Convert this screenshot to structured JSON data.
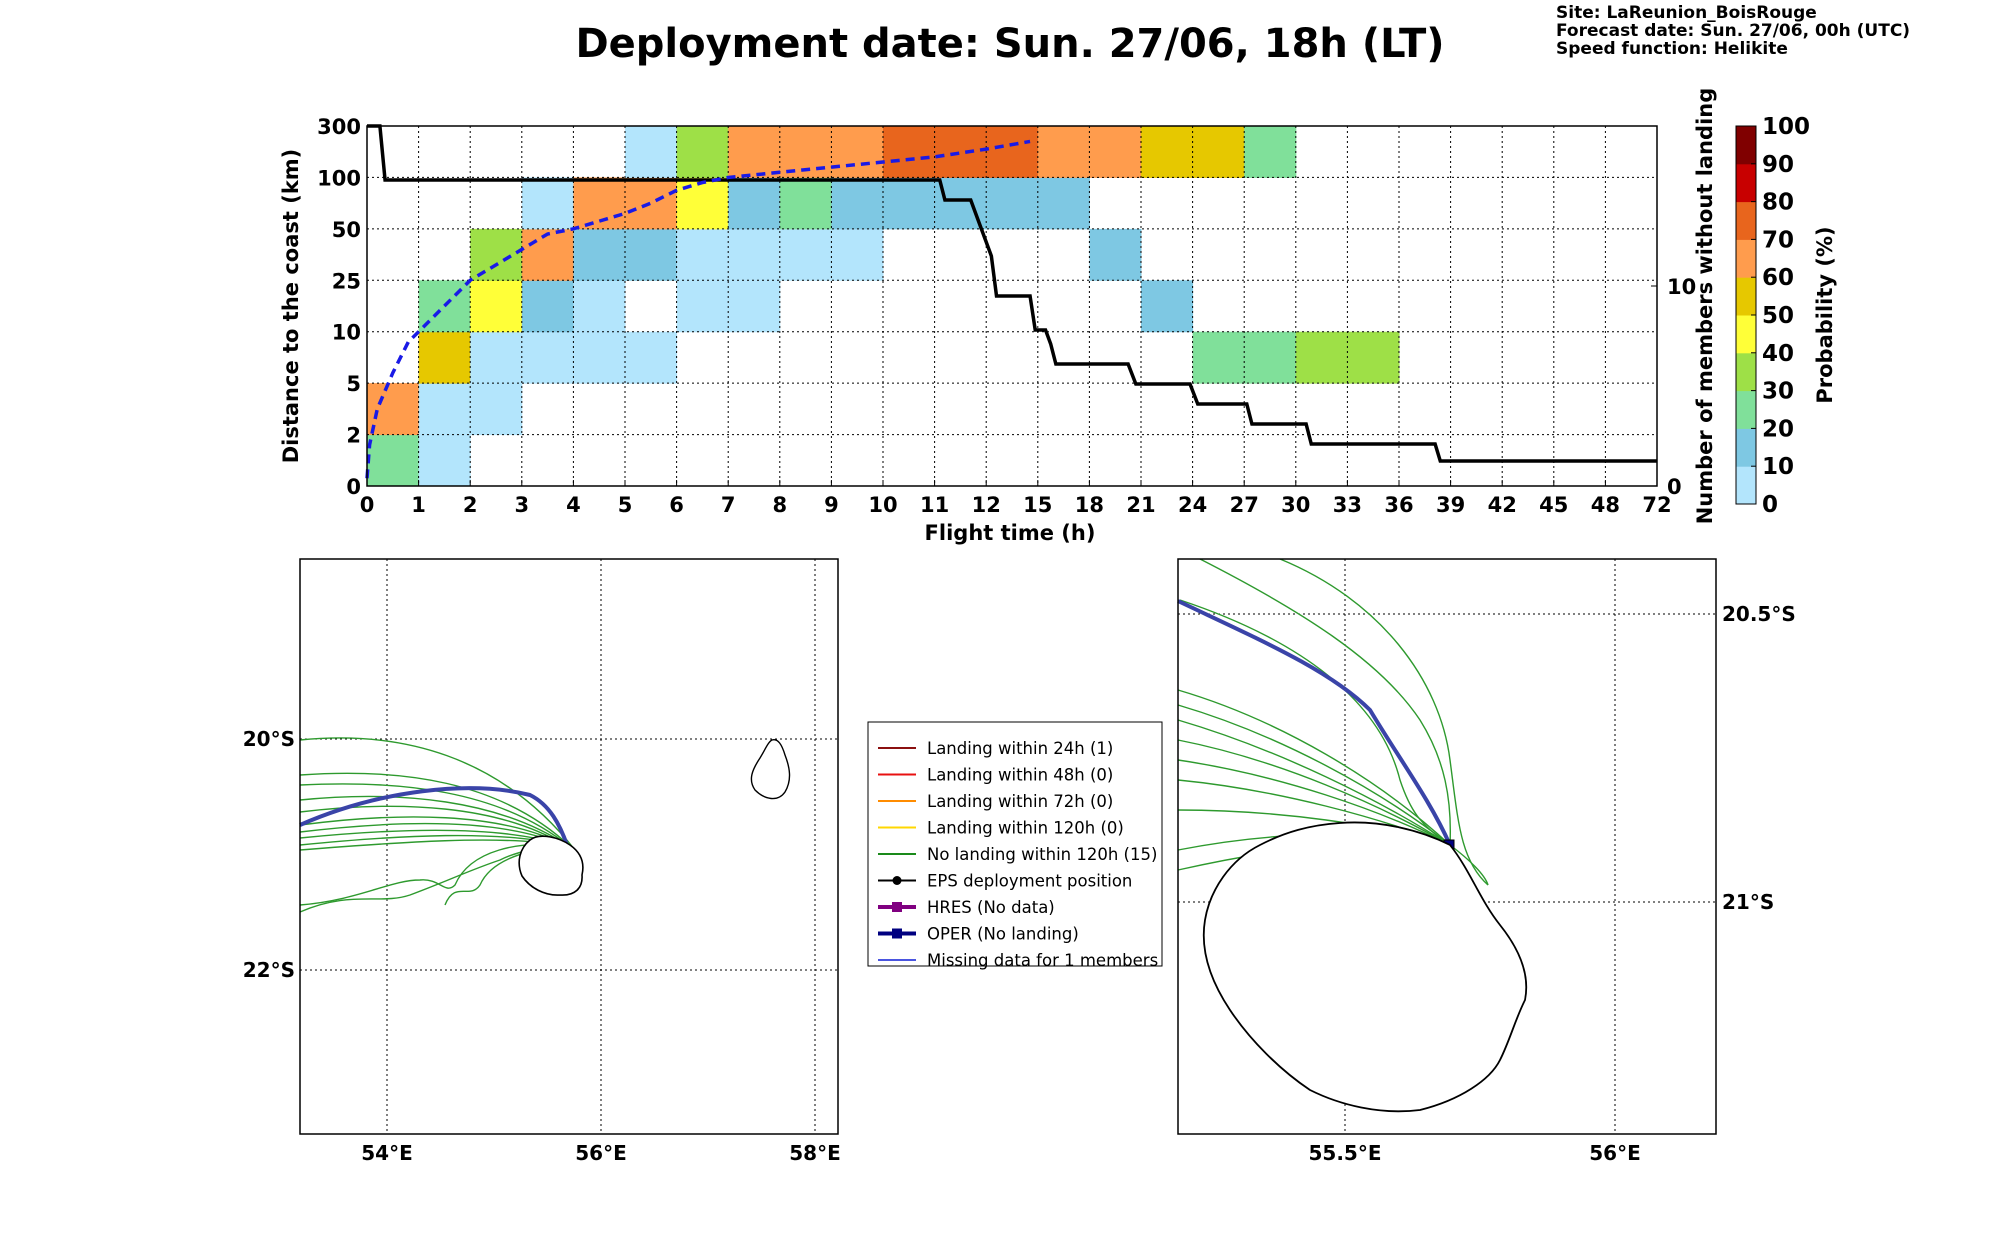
{
  "title": "Deployment date: Sun. 27/06, 18h (LT)",
  "info": {
    "site": "Site: LaReunion_BoisRouge",
    "forecast": "Forecast date: Sun. 27/06, 00h (UTC)",
    "speed": "Speed function: Helikite"
  },
  "chart_data": [
    {
      "type": "heatmap",
      "xlabel": "Flight time (h)",
      "ylabel": "Distance to the coast (km)",
      "y2label": "Number of members without landing",
      "x_ticks": [
        "0",
        "1",
        "2",
        "3",
        "4",
        "5",
        "6",
        "7",
        "8",
        "9",
        "10",
        "11",
        "12",
        "15",
        "18",
        "21",
        "24",
        "27",
        "30",
        "33",
        "36",
        "39",
        "42",
        "45",
        "48",
        "72"
      ],
      "y_ticks": [
        "0",
        "2",
        "5",
        "10",
        "25",
        "50",
        "100",
        "300"
      ],
      "y2_ticks": [
        "0",
        "10"
      ],
      "y2lim": [
        0,
        18
      ],
      "grid": true,
      "colorbar": {
        "label": "Probability (%)",
        "ticks": [
          "0",
          "10",
          "20",
          "30",
          "40",
          "50",
          "60",
          "70",
          "80",
          "90",
          "100"
        ],
        "colors": [
          "#b3e5fc",
          "#7ec8e3",
          "#80e09a",
          "#9ee047",
          "#ffff38",
          "#e6c800",
          "#ff9c4d",
          "#e8651d",
          "#c80000",
          "#800000"
        ]
      },
      "cells": [
        {
          "c": 0,
          "r": 0,
          "p": 20
        },
        {
          "c": 0,
          "r": 1,
          "p": 60
        },
        {
          "c": 1,
          "r": 0,
          "p": 0
        },
        {
          "c": 1,
          "r": 1,
          "p": 0
        },
        {
          "c": 1,
          "r": 2,
          "p": 50
        },
        {
          "c": 1,
          "r": 3,
          "p": 20
        },
        {
          "c": 2,
          "r": 1,
          "p": 0
        },
        {
          "c": 2,
          "r": 2,
          "p": 0
        },
        {
          "c": 2,
          "r": 3,
          "p": 40
        },
        {
          "c": 2,
          "r": 4,
          "p": 30
        },
        {
          "c": 3,
          "r": 2,
          "p": 0
        },
        {
          "c": 3,
          "r": 3,
          "p": 10
        },
        {
          "c": 3,
          "r": 4,
          "p": 60
        },
        {
          "c": 3,
          "r": 5,
          "p": 0
        },
        {
          "c": 4,
          "r": 2,
          "p": 0
        },
        {
          "c": 4,
          "r": 3,
          "p": 0
        },
        {
          "c": 4,
          "r": 4,
          "p": 10
        },
        {
          "c": 4,
          "r": 5,
          "p": 60
        },
        {
          "c": 5,
          "r": 2,
          "p": 0
        },
        {
          "c": 5,
          "r": 4,
          "p": 10
        },
        {
          "c": 5,
          "r": 5,
          "p": 60
        },
        {
          "c": 5,
          "r": 6,
          "p": 0
        },
        {
          "c": 6,
          "r": 3,
          "p": 0
        },
        {
          "c": 6,
          "r": 4,
          "p": 0
        },
        {
          "c": 6,
          "r": 5,
          "p": 40
        },
        {
          "c": 6,
          "r": 6,
          "p": 30
        },
        {
          "c": 7,
          "r": 3,
          "p": 0
        },
        {
          "c": 7,
          "r": 4,
          "p": 0
        },
        {
          "c": 7,
          "r": 5,
          "p": 10
        },
        {
          "c": 7,
          "r": 6,
          "p": 60
        },
        {
          "c": 8,
          "r": 4,
          "p": 0
        },
        {
          "c": 8,
          "r": 5,
          "p": 20
        },
        {
          "c": 8,
          "r": 6,
          "p": 60
        },
        {
          "c": 9,
          "r": 4,
          "p": 0
        },
        {
          "c": 9,
          "r": 5,
          "p": 10
        },
        {
          "c": 9,
          "r": 6,
          "p": 60
        },
        {
          "c": 10,
          "r": 5,
          "p": 10
        },
        {
          "c": 10,
          "r": 6,
          "p": 70
        },
        {
          "c": 11,
          "r": 5,
          "p": 10
        },
        {
          "c": 11,
          "r": 6,
          "p": 70
        },
        {
          "c": 12,
          "r": 5,
          "p": 10
        },
        {
          "c": 12,
          "r": 6,
          "p": 70
        },
        {
          "c": 13,
          "r": 5,
          "p": 10
        },
        {
          "c": 13,
          "r": 6,
          "p": 60
        },
        {
          "c": 14,
          "r": 4,
          "p": 10
        },
        {
          "c": 14,
          "r": 6,
          "p": 60
        },
        {
          "c": 15,
          "r": 3,
          "p": 10
        },
        {
          "c": 15,
          "r": 6,
          "p": 50
        },
        {
          "c": 16,
          "r": 2,
          "p": 20
        },
        {
          "c": 16,
          "r": 6,
          "p": 50
        },
        {
          "c": 17,
          "r": 2,
          "p": 20
        },
        {
          "c": 17,
          "r": 6,
          "p": 20
        },
        {
          "c": 18,
          "r": 2,
          "p": 30
        },
        {
          "c": 19,
          "r": 2,
          "p": 30
        }
      ],
      "members_line": {
        "name": "Number of members without landing",
        "steps": [
          [
            0,
            18
          ],
          [
            0.25,
            18
          ],
          [
            0.35,
            15.3
          ],
          [
            11.1,
            15.3
          ],
          [
            11.2,
            14.3
          ],
          [
            11.7,
            14.3
          ],
          [
            12.1,
            11.5
          ],
          [
            12.2,
            9.5
          ],
          [
            12.85,
            9.5
          ],
          [
            12.95,
            7.8
          ],
          [
            13.15,
            7.8
          ],
          [
            13.25,
            7.1
          ],
          [
            13.35,
            6.1
          ],
          [
            14.75,
            6.1
          ],
          [
            14.9,
            5.1
          ],
          [
            15.95,
            5.1
          ],
          [
            16.1,
            4.1
          ],
          [
            17.05,
            4.1
          ],
          [
            17.15,
            3.1
          ],
          [
            18.2,
            3.1
          ],
          [
            18.3,
            2.1
          ],
          [
            20.7,
            2.1
          ],
          [
            20.8,
            1.25
          ],
          [
            25,
            1.25
          ]
        ]
      },
      "dashed_line": {
        "points": [
          [
            0,
            0.15
          ],
          [
            0.05,
            0.8
          ],
          [
            0.2,
            1.5
          ],
          [
            0.5,
            2.2
          ],
          [
            0.8,
            2.8
          ],
          [
            1,
            3.0
          ],
          [
            1.5,
            3.5
          ],
          [
            2,
            4.0
          ],
          [
            2.5,
            4.3
          ],
          [
            3,
            4.6
          ],
          [
            3.5,
            4.9
          ],
          [
            4,
            5.0
          ],
          [
            4.5,
            5.15
          ],
          [
            5,
            5.3
          ],
          [
            5.5,
            5.5
          ],
          [
            6,
            5.75
          ],
          [
            6.5,
            5.9
          ],
          [
            7,
            6.0
          ],
          [
            8,
            6.1
          ],
          [
            9,
            6.2
          ],
          [
            10,
            6.3
          ],
          [
            11,
            6.4
          ],
          [
            12,
            6.55
          ],
          [
            12.85,
            6.7
          ]
        ]
      }
    }
  ],
  "legend": [
    {
      "label": "Landing within 24h (1)",
      "color": "#8b1010",
      "marker": "none"
    },
    {
      "label": "Landing within 48h (0)",
      "color": "#e81010",
      "marker": "none"
    },
    {
      "label": "Landing within 72h (0)",
      "color": "#ff8c00",
      "marker": "none"
    },
    {
      "label": "Landing within 120h (0)",
      "color": "#ffd700",
      "marker": "none"
    },
    {
      "label": "No landing within 120h (15)",
      "color": "#1a8a1a",
      "marker": "none"
    },
    {
      "label": "EPS deployment position",
      "color": "#000000",
      "marker": "circle"
    },
    {
      "label": "HRES (No data)",
      "color": "#800080",
      "marker": "square"
    },
    {
      "label": "OPER (No landing)",
      "color": "#000080",
      "marker": "square"
    },
    {
      "label": "Missing data for 1 members",
      "color": "#4a55e0",
      "marker": "none"
    }
  ],
  "map_left": {
    "x_ticks": [
      "54°E",
      "56°E",
      "58°E"
    ],
    "y_ticks": [
      "20°S",
      "22°S"
    ]
  },
  "map_right": {
    "x_ticks": [
      "55.5°E",
      "56°E"
    ],
    "y_ticks": [
      "20.5°S",
      "21°S"
    ]
  }
}
